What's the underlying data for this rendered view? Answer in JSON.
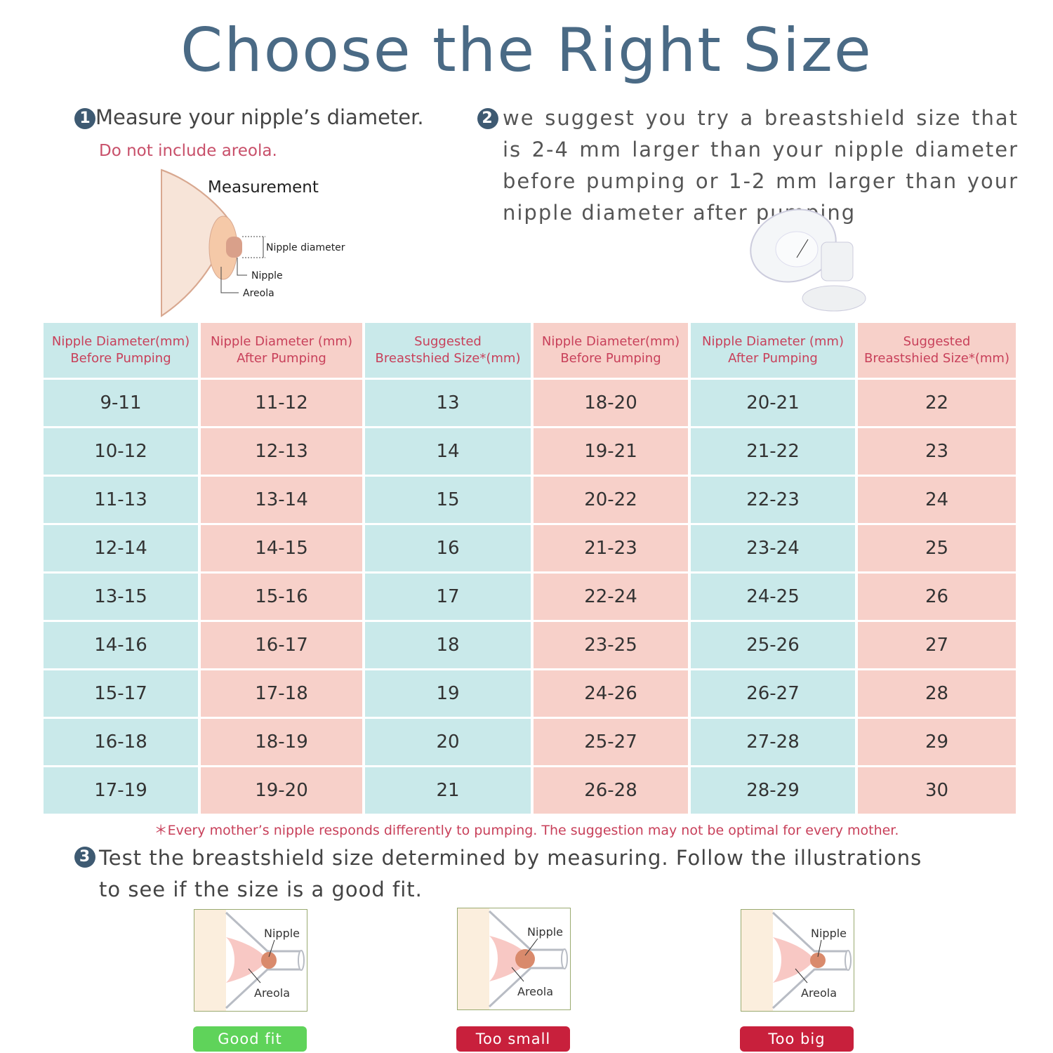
{
  "title": "Choose the Right Size",
  "step1": {
    "number": "1",
    "text": "Measure your nipple’s diameter.",
    "note": "Do not include areola.",
    "diagram": {
      "title": "Measurement",
      "diameter": "Nipple diameter",
      "nipple": "Nipple",
      "areola": "Areola"
    }
  },
  "step2": {
    "number": "2",
    "text": "we suggest you try a breastshield size that is 2-4 mm larger than your nipple diameter before pumping or 1-2 mm larger than your nipple diameter after pumping"
  },
  "table": {
    "headers": [
      "Nipple Diameter(mm)\nBefore Pumping",
      "Nipple Diameter (mm)\nAfter Pumping",
      "Suggested\nBreastshied Size*(mm)",
      "Nipple Diameter(mm)\nBefore Pumping",
      "Nipple Diameter (mm)\nAfter Pumping",
      "Suggested\nBreastshied Size*(mm)"
    ],
    "rows": [
      [
        "9-11",
        "11-12",
        "13",
        "18-20",
        "20-21",
        "22"
      ],
      [
        "10-12",
        "12-13",
        "14",
        "19-21",
        "21-22",
        "23"
      ],
      [
        "11-13",
        "13-14",
        "15",
        "20-22",
        "22-23",
        "24"
      ],
      [
        "12-14",
        "14-15",
        "16",
        "21-23",
        "23-24",
        "25"
      ],
      [
        "13-15",
        "15-16",
        "17",
        "22-24",
        "24-25",
        "26"
      ],
      [
        "14-16",
        "16-17",
        "18",
        "23-25",
        "25-26",
        "27"
      ],
      [
        "15-17",
        "17-18",
        "19",
        "24-26",
        "26-27",
        "28"
      ],
      [
        "16-18",
        "18-19",
        "20",
        "25-27",
        "27-28",
        "29"
      ],
      [
        "17-19",
        "19-20",
        "21",
        "26-28",
        "28-29",
        "30"
      ]
    ]
  },
  "footnote": "＊Every mother’s nipple responds differently to pumping. The suggestion may not be optimal for every mother.",
  "step3": {
    "number": "3",
    "text": "Test the breastshield size determined by measuring. Follow the illustrations to see if the size is a good fit."
  },
  "fits": [
    {
      "nipple": "Nipple",
      "areola": "Areola",
      "label": "Good fit"
    },
    {
      "nipple": "Nipple",
      "areola": "Areola",
      "label": "Too small"
    },
    {
      "nipple": "Nipple",
      "areola": "Areola",
      "label": "Too big"
    }
  ]
}
